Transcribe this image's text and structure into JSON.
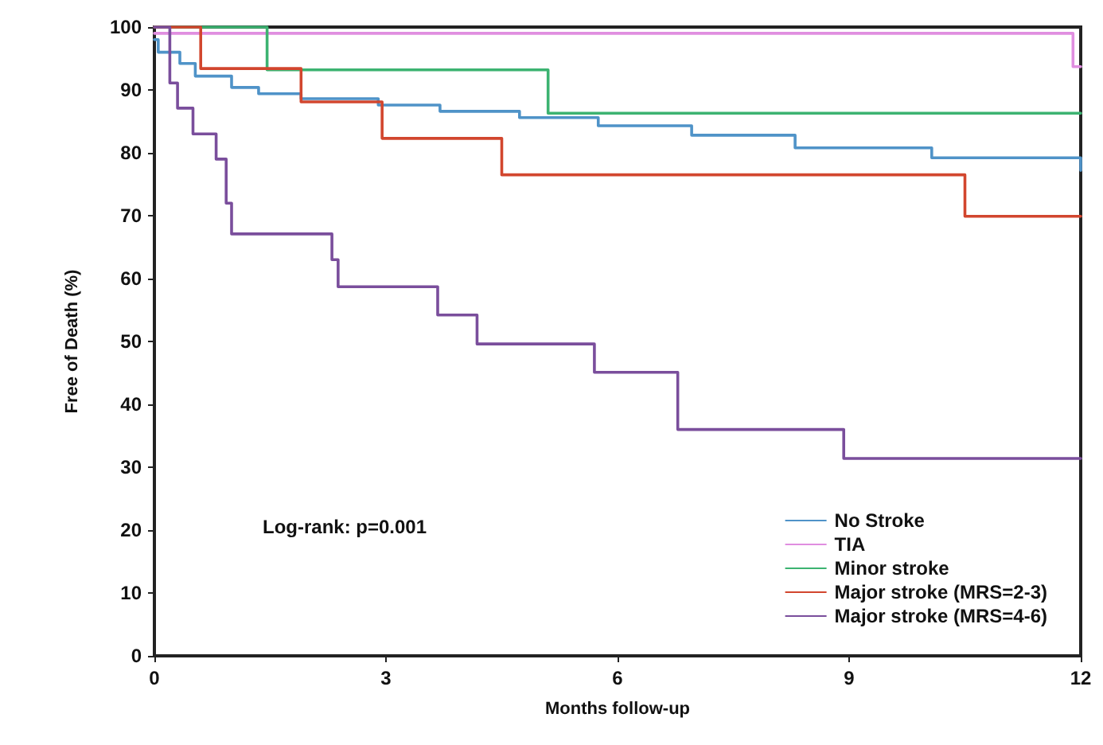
{
  "chart_data": {
    "type": "step",
    "xlabel": "Months follow-up",
    "ylabel": "Free of Death (%)",
    "annotations": [
      "Log-rank: p=0.001"
    ],
    "xlim": [
      0,
      12
    ],
    "xticks": [
      0,
      3,
      6,
      9,
      12
    ],
    "ylim": [
      0,
      100
    ],
    "yticks": [
      0,
      10,
      20,
      30,
      40,
      50,
      60,
      70,
      80,
      90,
      100
    ],
    "grid": false,
    "legend": "bottom right",
    "marker": "none",
    "line_style": "solid",
    "series": [
      {
        "name": "No Stroke",
        "color": "#4f93c8",
        "x": [
          0,
          0.05,
          0.33,
          0.53,
          1.0,
          1.35,
          1.9,
          2.9,
          3.7,
          4.73,
          5.75,
          6.96,
          8.3,
          10.07,
          12
        ],
        "values": [
          98,
          96,
          94.2,
          92.2,
          90.4,
          89.4,
          88.6,
          87.6,
          86.6,
          85.6,
          84.3,
          82.8,
          80.8,
          79.2,
          77.2
        ]
      },
      {
        "name": "TIA",
        "color": "#e08ee0",
        "x": [
          0,
          11.9,
          12
        ],
        "values": [
          99,
          93.7,
          93.7
        ]
      },
      {
        "name": "Minor stroke",
        "color": "#3cb371",
        "x": [
          0,
          1.46,
          5.1,
          12
        ],
        "values": [
          100,
          93.2,
          86.3,
          86.3
        ]
      },
      {
        "name": "Major stroke (MRS=2-3)",
        "color": "#d2462e",
        "x": [
          0,
          0.6,
          1.9,
          2.95,
          4.5,
          10.5,
          12
        ],
        "values": [
          100,
          93.4,
          88.1,
          82.3,
          76.5,
          69.9,
          69.9
        ]
      },
      {
        "name": "Major stroke (MRS=4-6)",
        "color": "#7a4e9c",
        "x": [
          0,
          0.2,
          0.3,
          0.5,
          0.8,
          0.93,
          1.0,
          2.3,
          2.38,
          3.67,
          4.18,
          5.7,
          6.78,
          8.93,
          12
        ],
        "values": [
          100,
          91.1,
          87.1,
          83,
          79,
          72,
          67.1,
          63,
          58.7,
          54.2,
          49.6,
          45.1,
          36,
          31.4,
          31.4
        ]
      }
    ]
  }
}
